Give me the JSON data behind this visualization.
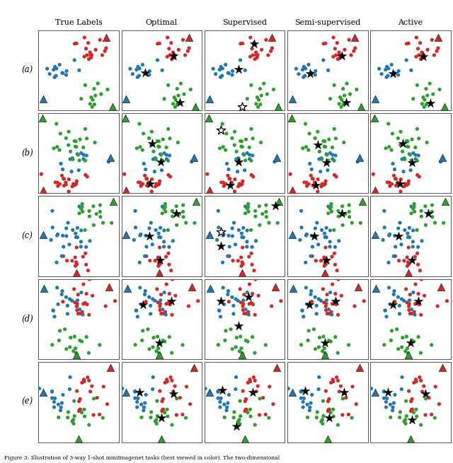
{
  "col_headers": [
    "True Labels",
    "Optimal",
    "Supervised",
    "Semi-supervised",
    "Active"
  ],
  "row_labels": [
    "(a)",
    "(b)",
    "(c)",
    "(d)",
    "(e)"
  ],
  "colors": {
    "red": "#d62728",
    "blue": "#1f77b4",
    "green": "#2ca02c"
  },
  "caption": "Figure 3: Illustration of 3-way 1-shot miniImagenet tasks (best viewed in color). The two-dimensional",
  "figsize": [
    6.4,
    6.55
  ],
  "dpi": 100
}
